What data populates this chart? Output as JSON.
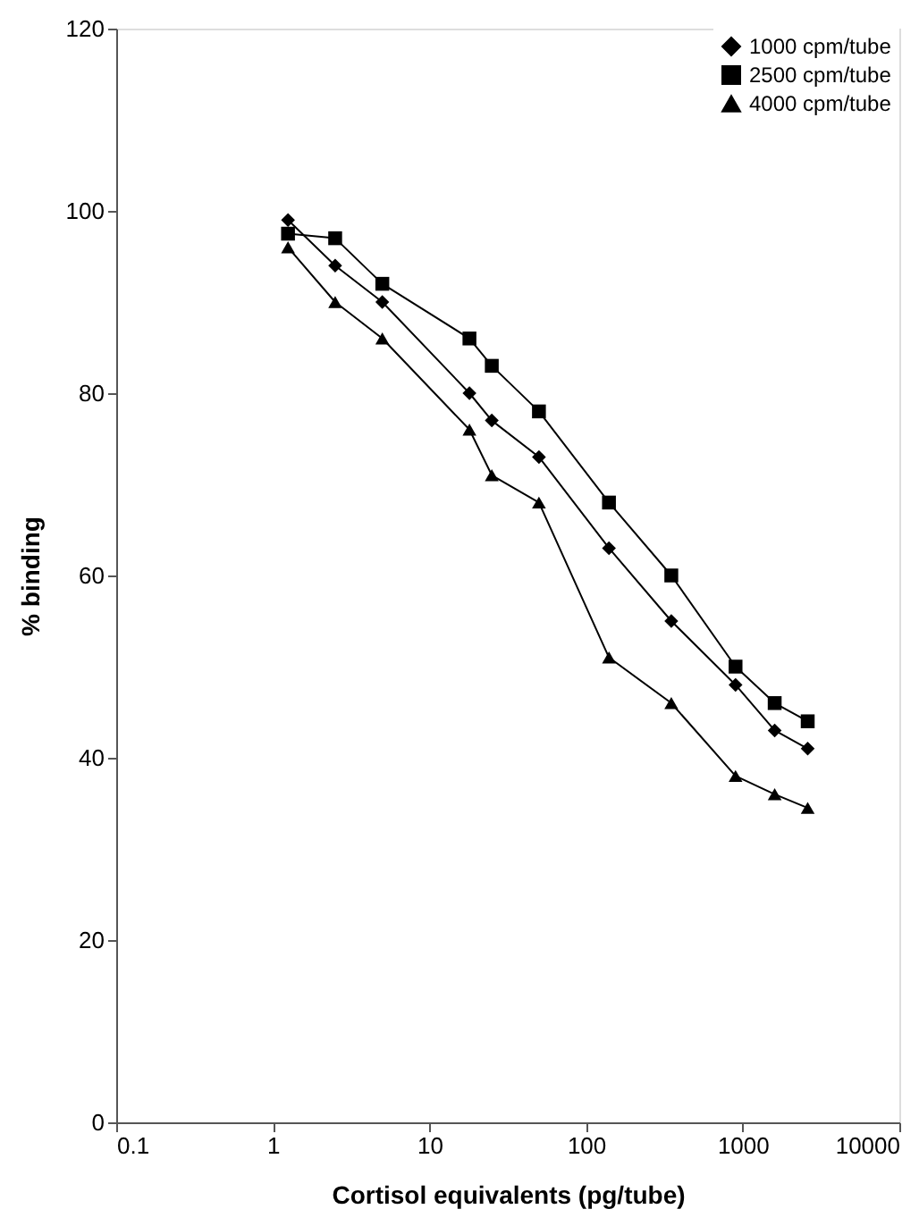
{
  "chart_data": {
    "type": "line",
    "xlabel": "Cortisol equivalents (pg/tube)",
    "ylabel": "% binding",
    "x": [
      1.25,
      2.5,
      5,
      18,
      25,
      50,
      140,
      350,
      900,
      1600,
      2600
    ],
    "series": [
      {
        "name": "1000 cpm/tube",
        "color": "#000000",
        "marker": "diamond",
        "values": [
          99,
          94,
          90,
          80,
          77,
          73,
          63,
          55,
          48,
          43,
          41
        ]
      },
      {
        "name": "2500 cpm/tube",
        "color": "#000000",
        "marker": "square",
        "values": [
          97.5,
          97,
          92,
          86,
          83,
          78,
          68,
          60,
          50,
          46,
          44
        ]
      },
      {
        "name": "4000 cpm/tube",
        "color": "#000000",
        "marker": "triangle",
        "values": [
          96,
          90,
          86,
          76,
          71,
          68,
          51,
          46,
          38,
          36,
          34.5
        ]
      }
    ],
    "log": "x",
    "xlim": [
      0.1,
      10000
    ],
    "xticks": [
      0.1,
      1,
      10,
      100,
      1000,
      10000
    ],
    "ylim": [
      0,
      120
    ],
    "yticks": [
      0,
      20,
      40,
      60,
      80,
      100,
      120
    ],
    "grid": false,
    "legend": "top right",
    "line_style": "solid"
  }
}
